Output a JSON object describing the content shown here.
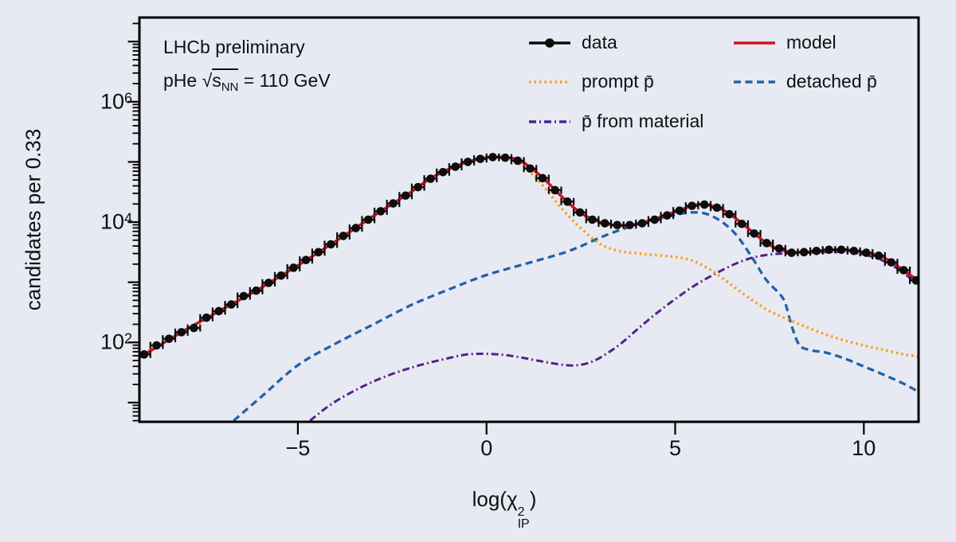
{
  "figure": {
    "info": {
      "line1": "LHCb preliminary",
      "line2": {
        "prefix": "pHe √",
        "sqrt_arg": "s",
        "sqrt_sub": "NN",
        "suffix": " = 110 GeV"
      }
    }
  },
  "legend": {
    "entries": [
      {
        "label": "data",
        "marker": "data",
        "color": "#0d0d0d",
        "col": 1,
        "row": 0
      },
      {
        "label": "model",
        "marker": "solid",
        "color": "#cf1222",
        "col": 2,
        "row": 0
      },
      {
        "label": "prompt p̄",
        "marker": "dotted",
        "color": "#f8a01c",
        "col": 1,
        "row": 1
      },
      {
        "label": "detached p̄",
        "marker": "dashed",
        "color": "#2261a7",
        "col": 2,
        "row": 1
      },
      {
        "label": "p̄ from material",
        "marker": "dashdot",
        "color": "#53218c",
        "col": 1,
        "row": 2
      }
    ]
  },
  "chart_data": {
    "type": "line",
    "title": "",
    "ylabel": "candidates per 0.33",
    "xlabel_parts": {
      "prefix": "log(",
      "chi": "χ",
      "sup": "2",
      "sub": "IP",
      "suffix": ")"
    },
    "x_axis": {
      "min": -9.2,
      "max": 11.45,
      "major_ticks": [
        -5,
        0,
        5,
        10
      ],
      "tick_labels": [
        "−5",
        "0",
        "5",
        "10"
      ]
    },
    "y_axis": {
      "log": true,
      "log_min": 0.68,
      "log_max": 7.4,
      "label_base": "10",
      "labeled": [
        {
          "L": 2,
          "exp": "2"
        },
        {
          "L": 4,
          "exp": "4"
        },
        {
          "L": 6,
          "exp": "6"
        }
      ]
    },
    "grid": false,
    "series": [
      {
        "name": "detached pbar",
        "legend_label": "detached p̄",
        "color": "#2261a7",
        "style": "dashed",
        "width": 3.3,
        "log10_points": [
          [
            -6.7,
            0.7
          ],
          [
            -6,
            1.08
          ],
          [
            -5,
            1.62
          ],
          [
            -4,
            1.98
          ],
          [
            -3,
            2.3
          ],
          [
            -2,
            2.62
          ],
          [
            -1,
            2.88
          ],
          [
            0,
            3.12
          ],
          [
            1,
            3.3
          ],
          [
            2,
            3.48
          ],
          [
            2.5,
            3.6
          ],
          [
            3,
            3.74
          ],
          [
            3.5,
            3.86
          ],
          [
            4,
            3.96
          ],
          [
            4.5,
            4.05
          ],
          [
            5,
            4.12
          ],
          [
            5.4,
            4.16
          ],
          [
            5.8,
            4.14
          ],
          [
            6.2,
            4.02
          ],
          [
            6.6,
            3.8
          ],
          [
            7,
            3.45
          ],
          [
            7.4,
            3.05
          ],
          [
            7.7,
            2.85
          ],
          [
            7.9,
            2.68
          ],
          [
            8.1,
            2.25
          ],
          [
            8.3,
            1.95
          ],
          [
            8.6,
            1.87
          ],
          [
            9,
            1.83
          ],
          [
            9.5,
            1.73
          ],
          [
            10,
            1.6
          ],
          [
            10.5,
            1.47
          ],
          [
            11,
            1.33
          ],
          [
            11.45,
            1.18
          ]
        ]
      },
      {
        "name": "pbar from material",
        "legend_label": "p̄ from material",
        "color": "#53218c",
        "style": "dashdot",
        "width": 3,
        "log10_points": [
          [
            -4.68,
            0.7
          ],
          [
            -4,
            1.02
          ],
          [
            -3,
            1.35
          ],
          [
            -2,
            1.58
          ],
          [
            -1,
            1.74
          ],
          [
            -0.5,
            1.8
          ],
          [
            0,
            1.81
          ],
          [
            0.5,
            1.79
          ],
          [
            1,
            1.74
          ],
          [
            1.5,
            1.68
          ],
          [
            2,
            1.63
          ],
          [
            2.4,
            1.62
          ],
          [
            2.8,
            1.68
          ],
          [
            3.2,
            1.82
          ],
          [
            3.6,
            2.0
          ],
          [
            4,
            2.22
          ],
          [
            4.5,
            2.48
          ],
          [
            5,
            2.72
          ],
          [
            5.5,
            2.94
          ],
          [
            6,
            3.12
          ],
          [
            6.5,
            3.28
          ],
          [
            7,
            3.4
          ],
          [
            7.5,
            3.46
          ],
          [
            8,
            3.48
          ],
          [
            8.5,
            3.49
          ],
          [
            9,
            3.5
          ],
          [
            9.5,
            3.5
          ],
          [
            10,
            3.46
          ],
          [
            10.5,
            3.36
          ],
          [
            11,
            3.18
          ],
          [
            11.45,
            2.95
          ]
        ]
      },
      {
        "name": "prompt pbar",
        "legend_label": "prompt p̄",
        "color": "#f8a01c",
        "style": "dotted",
        "width": 3.5,
        "log10_points": [
          [
            -9.2,
            1.78
          ],
          [
            -8,
            2.2
          ],
          [
            -7,
            2.55
          ],
          [
            -6,
            2.9
          ],
          [
            -5,
            3.28
          ],
          [
            -4,
            3.68
          ],
          [
            -3,
            4.1
          ],
          [
            -2.5,
            4.3
          ],
          [
            -2,
            4.5
          ],
          [
            -1.5,
            4.72
          ],
          [
            -1,
            4.88
          ],
          [
            -0.5,
            5.0
          ],
          [
            0,
            5.06
          ],
          [
            0.33,
            5.07
          ],
          [
            0.7,
            5.02
          ],
          [
            1,
            4.92
          ],
          [
            1.5,
            4.6
          ],
          [
            2,
            4.22
          ],
          [
            2.5,
            3.9
          ],
          [
            3,
            3.64
          ],
          [
            3.5,
            3.52
          ],
          [
            4,
            3.48
          ],
          [
            4.5,
            3.45
          ],
          [
            5,
            3.42
          ],
          [
            5.5,
            3.35
          ],
          [
            6,
            3.18
          ],
          [
            6.5,
            2.95
          ],
          [
            7,
            2.72
          ],
          [
            7.5,
            2.52
          ],
          [
            8,
            2.38
          ],
          [
            8.5,
            2.25
          ],
          [
            9,
            2.13
          ],
          [
            9.5,
            2.03
          ],
          [
            10,
            1.95
          ],
          [
            10.5,
            1.88
          ],
          [
            11,
            1.81
          ],
          [
            11.45,
            1.76
          ]
        ]
      },
      {
        "name": "model",
        "legend_label": "model",
        "color": "#cf1222",
        "style": "solid",
        "width": 3.5,
        "log10_points": [
          [
            -9.2,
            1.75
          ],
          [
            -8,
            2.2
          ],
          [
            -7,
            2.55
          ],
          [
            -6,
            2.9
          ],
          [
            -5,
            3.28
          ],
          [
            -4,
            3.68
          ],
          [
            -3,
            4.1
          ],
          [
            -2.5,
            4.3
          ],
          [
            -2,
            4.5
          ],
          [
            -1.5,
            4.72
          ],
          [
            -1,
            4.88
          ],
          [
            -0.5,
            5.0
          ],
          [
            0,
            5.07
          ],
          [
            0.33,
            5.08
          ],
          [
            0.7,
            5.06
          ],
          [
            1,
            4.98
          ],
          [
            1.5,
            4.73
          ],
          [
            2,
            4.42
          ],
          [
            2.5,
            4.15
          ],
          [
            3,
            4.0
          ],
          [
            3.5,
            3.94
          ],
          [
            4,
            3.97
          ],
          [
            4.5,
            4.06
          ],
          [
            5,
            4.17
          ],
          [
            5.5,
            4.28
          ],
          [
            5.8,
            4.29
          ],
          [
            6.2,
            4.22
          ],
          [
            6.5,
            4.11
          ],
          [
            7,
            3.86
          ],
          [
            7.5,
            3.62
          ],
          [
            8,
            3.51
          ],
          [
            8.5,
            3.5
          ],
          [
            9,
            3.53
          ],
          [
            9.5,
            3.54
          ],
          [
            10,
            3.5
          ],
          [
            10.5,
            3.42
          ],
          [
            11,
            3.22
          ],
          [
            11.45,
            3.02
          ]
        ]
      }
    ],
    "data_points": {
      "name": "data",
      "color": "#0d0d0d",
      "bin_width": 0.33,
      "xerr": 0.165,
      "log10_points": [
        [
          -9.075,
          1.8
        ],
        [
          -8.745,
          1.95
        ],
        [
          -8.415,
          2.06
        ],
        [
          -8.085,
          2.17
        ],
        [
          -7.755,
          2.24
        ],
        [
          -7.425,
          2.41
        ],
        [
          -7.095,
          2.52
        ],
        [
          -6.765,
          2.63
        ],
        [
          -6.435,
          2.77
        ],
        [
          -6.105,
          2.86
        ],
        [
          -5.775,
          2.99
        ],
        [
          -5.445,
          3.11
        ],
        [
          -5.115,
          3.24
        ],
        [
          -4.785,
          3.37
        ],
        [
          -4.455,
          3.5
        ],
        [
          -4.125,
          3.63
        ],
        [
          -3.795,
          3.77
        ],
        [
          -3.465,
          3.9
        ],
        [
          -3.135,
          4.04
        ],
        [
          -2.805,
          4.18
        ],
        [
          -2.475,
          4.31
        ],
        [
          -2.145,
          4.44
        ],
        [
          -1.815,
          4.58
        ],
        [
          -1.485,
          4.72
        ],
        [
          -1.155,
          4.83
        ],
        [
          -0.825,
          4.92
        ],
        [
          -0.495,
          5.0
        ],
        [
          -0.165,
          5.05
        ],
        [
          0.165,
          5.08
        ],
        [
          0.495,
          5.07
        ],
        [
          0.825,
          5.02
        ],
        [
          1.155,
          4.89
        ],
        [
          1.485,
          4.73
        ],
        [
          1.815,
          4.53
        ],
        [
          2.145,
          4.34
        ],
        [
          2.475,
          4.16
        ],
        [
          2.805,
          4.04
        ],
        [
          3.135,
          3.98
        ],
        [
          3.465,
          3.95
        ],
        [
          3.795,
          3.95
        ],
        [
          4.125,
          3.98
        ],
        [
          4.455,
          4.04
        ],
        [
          4.785,
          4.11
        ],
        [
          5.115,
          4.19
        ],
        [
          5.445,
          4.27
        ],
        [
          5.775,
          4.29
        ],
        [
          6.105,
          4.24
        ],
        [
          6.435,
          4.13
        ],
        [
          6.765,
          3.97
        ],
        [
          7.095,
          3.81
        ],
        [
          7.425,
          3.65
        ],
        [
          7.755,
          3.56
        ],
        [
          8.085,
          3.49
        ],
        [
          8.415,
          3.5
        ],
        [
          8.745,
          3.52
        ],
        [
          9.075,
          3.54
        ],
        [
          9.405,
          3.54
        ],
        [
          9.735,
          3.52
        ],
        [
          10.065,
          3.49
        ],
        [
          10.395,
          3.44
        ],
        [
          10.725,
          3.33
        ],
        [
          11.055,
          3.2
        ],
        [
          11.385,
          3.03
        ]
      ]
    }
  }
}
